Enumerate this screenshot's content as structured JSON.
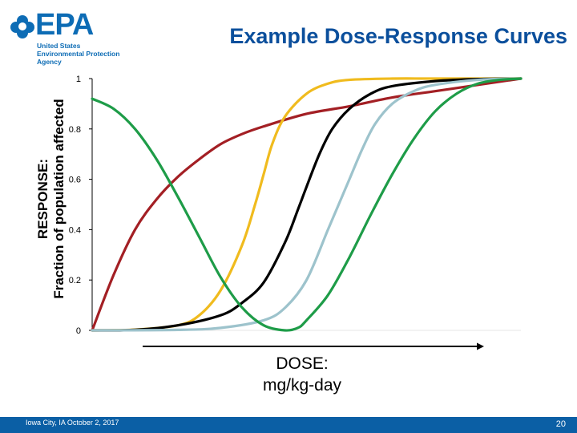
{
  "logo": {
    "wordmark": "EPA",
    "agency": "United States\nEnvironmental Protection\nAgency"
  },
  "slide": {
    "title": "Example Dose-Response Curves",
    "footer": "Iowa City, IA  October 2, 2017",
    "page_number": "20"
  },
  "chart_data": {
    "type": "line",
    "title": "Example Dose-Response Curves",
    "ylabel_lines": [
      "RESPONSE:",
      "Fraction of population affected"
    ],
    "xlabel_lines": [
      "DOSE:",
      "mg/kg-day"
    ],
    "ylim": [
      0,
      1
    ],
    "xlim": [
      0,
      1
    ],
    "yticks": [
      "0",
      "0.2",
      "0.4",
      "0.6",
      "0.8",
      "1"
    ],
    "x_tick_labels": "none",
    "grid": false,
    "legend": "none",
    "series": [
      {
        "color": "#a31f24",
        "x": [
          0,
          0.05,
          0.1,
          0.15,
          0.2,
          0.25,
          0.3,
          0.35,
          0.4,
          0.5,
          0.6,
          0.7,
          0.8,
          0.9,
          1.0
        ],
        "y": [
          0,
          0.22,
          0.4,
          0.52,
          0.61,
          0.68,
          0.74,
          0.78,
          0.81,
          0.86,
          0.89,
          0.925,
          0.95,
          0.975,
          1.0
        ]
      },
      {
        "color": "#f0bb1e",
        "x": [
          0,
          0.1,
          0.2,
          0.25,
          0.3,
          0.35,
          0.38,
          0.4,
          0.42,
          0.45,
          0.5,
          0.55,
          0.6,
          0.7,
          0.8,
          1.0
        ],
        "y": [
          0,
          0.003,
          0.02,
          0.06,
          0.16,
          0.34,
          0.5,
          0.62,
          0.74,
          0.85,
          0.94,
          0.98,
          0.995,
          1.0,
          1.0,
          1.0
        ]
      },
      {
        "color": "#000000",
        "x": [
          0,
          0.1,
          0.2,
          0.3,
          0.35,
          0.4,
          0.45,
          0.48,
          0.5,
          0.53,
          0.56,
          0.6,
          0.65,
          0.7,
          0.8,
          0.9,
          1.0
        ],
        "y": [
          0,
          0.002,
          0.02,
          0.06,
          0.11,
          0.19,
          0.35,
          0.48,
          0.57,
          0.7,
          0.8,
          0.88,
          0.94,
          0.97,
          0.99,
          0.998,
          1.0
        ]
      },
      {
        "color": "#9dc3cc",
        "x": [
          0,
          0.2,
          0.3,
          0.4,
          0.45,
          0.5,
          0.55,
          0.58,
          0.6,
          0.63,
          0.66,
          0.7,
          0.75,
          0.8,
          0.9,
          1.0
        ],
        "y": [
          0,
          0.002,
          0.01,
          0.04,
          0.09,
          0.2,
          0.4,
          0.52,
          0.6,
          0.72,
          0.82,
          0.9,
          0.95,
          0.975,
          0.995,
          1.0
        ]
      },
      {
        "color": "#1e9c48",
        "x": [
          0,
          0.05,
          0.1,
          0.15,
          0.2,
          0.25,
          0.3,
          0.35,
          0.4,
          0.45,
          0.48,
          0.5,
          0.55,
          0.6,
          0.65,
          0.7,
          0.75,
          0.8,
          0.85,
          0.9,
          0.95,
          1.0
        ],
        "y": [
          0.92,
          0.88,
          0.8,
          0.68,
          0.53,
          0.37,
          0.21,
          0.09,
          0.02,
          0.0,
          0.01,
          0.04,
          0.14,
          0.29,
          0.46,
          0.62,
          0.76,
          0.87,
          0.94,
          0.98,
          0.995,
          1.0
        ]
      }
    ]
  }
}
